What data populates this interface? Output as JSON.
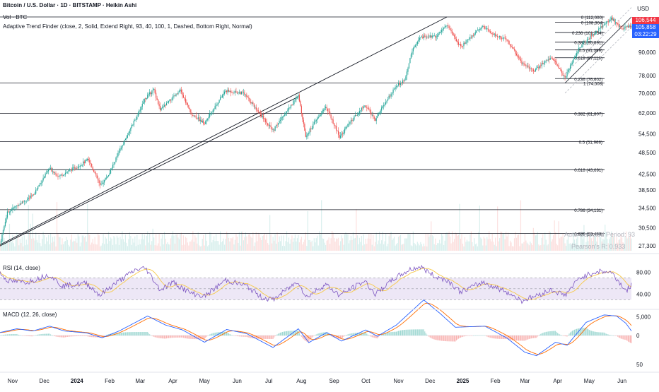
{
  "header": {
    "title": "Bitcoin / U.S. Dollar · 1D · BITSTAMP · Heikin Ashi",
    "volume_label": "Vol · BTC",
    "indicator_label": "Adaptive Trend Finder (close, 2, Solid, Extend Right, 93, 40, 100, 1, Dashed, Bottom Right, Normal)",
    "currency": "USD"
  },
  "price_tags": {
    "current_price": "105,858",
    "countdown": "03:22:29",
    "upper_tag": "106,544"
  },
  "fib_levels": [
    {
      "label": "0 (112,000)",
      "value": 112000
    },
    {
      "label": "0 (108,364)",
      "value": 108364
    },
    {
      "label": "0.236 (101,754)",
      "value": 101754
    },
    {
      "label": "0.382 (95,891)",
      "value": 95891
    },
    {
      "label": "0.5 (91,399)",
      "value": 91399
    },
    {
      "label": "0.618 (87,119)",
      "value": 87119
    },
    {
      "label": "0.236 (76,602)",
      "value": 76602
    },
    {
      "label": "1 (74,508)",
      "value": 74508
    },
    {
      "label": "0.382 (61,807)",
      "value": 61807
    },
    {
      "label": "0.5 (51,966)",
      "value": 51966
    },
    {
      "label": "0.618 (43,691)",
      "value": 43691
    },
    {
      "label": "0.786 (34,131)",
      "value": 34131
    },
    {
      "label": "0.886 (29,466)",
      "value": 29466
    }
  ],
  "annotations": {
    "auto_selected": "Auto-Selected Period: 93",
    "pearson": "Pearson's R: 0.933"
  },
  "rsi": {
    "label": "RSI (14, close)",
    "ticks": [
      "80.00",
      "40.00"
    ]
  },
  "macd": {
    "label": "MACD (12, 26, close)",
    "ticks": [
      "5,000",
      "0",
      "50"
    ]
  },
  "colors": {
    "up": "#26a69a",
    "down": "#ef5350",
    "rsi_line": "#7e57c2",
    "rsi_ma": "#f7c948",
    "macd_line": "#2962ff",
    "signal_line": "#ff6d00",
    "price_tag_red": "#f23645",
    "price_tag_blue": "#2962ff",
    "rsi_band": "#ede7f6"
  },
  "chart_data": {
    "type": "candlestick",
    "title": "Bitcoin / U.S. Dollar · 1D · BITSTAMP · Heikin Ashi",
    "y_scale": "log",
    "y_ticks": [
      "90,000",
      "78,000",
      "70,000",
      "62,000",
      "54,500",
      "48,500",
      "42,500",
      "38,500",
      "34,500",
      "30,500",
      "27,300"
    ],
    "x_ticks": [
      "Nov",
      "Dec",
      "2024",
      "Feb",
      "Mar",
      "Apr",
      "May",
      "Jun",
      "Jul",
      "Aug",
      "Sep",
      "Oct",
      "Nov",
      "Dec",
      "2025",
      "Feb",
      "Mar",
      "Apr",
      "May",
      "Jun"
    ],
    "x_range": [
      "2023-10-20",
      "2025-06-10"
    ],
    "y_range": [
      26500,
      117000
    ],
    "close_path": [
      [
        "2023-10-20",
        27500
      ],
      [
        "2023-10-27",
        33500
      ],
      [
        "2023-11-05",
        35000
      ],
      [
        "2023-11-20",
        37200
      ],
      [
        "2023-12-06",
        44000
      ],
      [
        "2023-12-15",
        42000
      ],
      [
        "2024-01-01",
        44500
      ],
      [
        "2024-01-12",
        46500
      ],
      [
        "2024-01-23",
        39500
      ],
      [
        "2024-02-01",
        42800
      ],
      [
        "2024-02-15",
        52000
      ],
      [
        "2024-02-28",
        61500
      ],
      [
        "2024-03-05",
        67500
      ],
      [
        "2024-03-14",
        71500
      ],
      [
        "2024-03-20",
        63000
      ],
      [
        "2024-04-08",
        71000
      ],
      [
        "2024-04-18",
        62000
      ],
      [
        "2024-05-01",
        58000
      ],
      [
        "2024-05-21",
        71000
      ],
      [
        "2024-06-07",
        70000
      ],
      [
        "2024-06-24",
        61000
      ],
      [
        "2024-07-05",
        55500
      ],
      [
        "2024-07-14",
        60500
      ],
      [
        "2024-07-29",
        68800
      ],
      [
        "2024-08-05",
        53500
      ],
      [
        "2024-08-24",
        64500
      ],
      [
        "2024-09-06",
        53500
      ],
      [
        "2024-09-30",
        65000
      ],
      [
        "2024-10-10",
        59500
      ],
      [
        "2024-10-29",
        72500
      ],
      [
        "2024-11-08",
        77000
      ],
      [
        "2024-11-13",
        89500
      ],
      [
        "2024-11-22",
        99000
      ],
      [
        "2024-12-06",
        99500
      ],
      [
        "2024-12-17",
        106500
      ],
      [
        "2024-12-30",
        93000
      ],
      [
        "2025-01-20",
        106000
      ],
      [
        "2025-01-28",
        101500
      ],
      [
        "2025-02-12",
        97000
      ],
      [
        "2025-02-26",
        84500
      ],
      [
        "2025-03-10",
        80500
      ],
      [
        "2025-03-26",
        87500
      ],
      [
        "2025-04-08",
        77000
      ],
      [
        "2025-04-22",
        93000
      ],
      [
        "2025-05-09",
        103500
      ],
      [
        "2025-05-22",
        111000
      ],
      [
        "2025-06-01",
        104000
      ],
      [
        "2025-06-10",
        106500
      ]
    ],
    "rsi_path": [
      [
        "2023-10-20",
        78
      ],
      [
        "2023-10-28",
        64
      ],
      [
        "2023-11-15",
        62
      ],
      [
        "2023-12-06",
        76
      ],
      [
        "2023-12-18",
        55
      ],
      [
        "2024-01-10",
        60
      ],
      [
        "2024-01-23",
        38
      ],
      [
        "2024-02-05",
        58
      ],
      [
        "2024-02-25",
        84
      ],
      [
        "2024-03-06",
        88
      ],
      [
        "2024-03-20",
        48
      ],
      [
        "2024-04-01",
        62
      ],
      [
        "2024-04-18",
        42
      ],
      [
        "2024-05-01",
        36
      ],
      [
        "2024-05-21",
        66
      ],
      [
        "2024-06-10",
        55
      ],
      [
        "2024-06-24",
        34
      ],
      [
        "2024-07-05",
        30
      ],
      [
        "2024-07-29",
        64
      ],
      [
        "2024-08-05",
        34
      ],
      [
        "2024-08-24",
        58
      ],
      [
        "2024-09-06",
        38
      ],
      [
        "2024-09-30",
        64
      ],
      [
        "2024-10-10",
        40
      ],
      [
        "2024-10-29",
        70
      ],
      [
        "2024-11-13",
        86
      ],
      [
        "2024-11-22",
        90
      ],
      [
        "2024-12-06",
        72
      ],
      [
        "2024-12-17",
        66
      ],
      [
        "2024-12-30",
        44
      ],
      [
        "2025-01-20",
        62
      ],
      [
        "2025-02-12",
        44
      ],
      [
        "2025-02-26",
        28
      ],
      [
        "2025-03-10",
        36
      ],
      [
        "2025-03-26",
        48
      ],
      [
        "2025-04-08",
        38
      ],
      [
        "2025-04-22",
        70
      ],
      [
        "2025-05-09",
        82
      ],
      [
        "2025-05-22",
        80
      ],
      [
        "2025-06-05",
        46
      ],
      [
        "2025-06-10",
        56
      ]
    ],
    "macd_path": [
      [
        "2023-10-20",
        800
      ],
      [
        "2023-11-05",
        1800
      ],
      [
        "2023-11-20",
        1200
      ],
      [
        "2023-12-06",
        2500
      ],
      [
        "2023-12-20",
        1200
      ],
      [
        "2024-01-10",
        700
      ],
      [
        "2024-01-25",
        -600
      ],
      [
        "2024-02-10",
        1200
      ],
      [
        "2024-03-08",
        5200
      ],
      [
        "2024-03-25",
        2800
      ],
      [
        "2024-04-10",
        1500
      ],
      [
        "2024-05-01",
        -1800
      ],
      [
        "2024-05-22",
        1600
      ],
      [
        "2024-06-10",
        500
      ],
      [
        "2024-07-05",
        -3200
      ],
      [
        "2024-07-29",
        1800
      ],
      [
        "2024-08-08",
        -1900
      ],
      [
        "2024-08-25",
        800
      ],
      [
        "2024-09-08",
        -1500
      ],
      [
        "2024-10-01",
        1500
      ],
      [
        "2024-10-12",
        -200
      ],
      [
        "2024-10-30",
        2800
      ],
      [
        "2024-11-25",
        9500
      ],
      [
        "2024-12-10",
        6000
      ],
      [
        "2024-12-25",
        2200
      ],
      [
        "2025-01-22",
        2500
      ],
      [
        "2025-02-12",
        -700
      ],
      [
        "2025-03-01",
        -4500
      ],
      [
        "2025-03-12",
        -5400
      ],
      [
        "2025-03-30",
        -1800
      ],
      [
        "2025-04-10",
        -2600
      ],
      [
        "2025-04-28",
        3500
      ],
      [
        "2025-05-15",
        5500
      ],
      [
        "2025-05-27",
        5200
      ],
      [
        "2025-06-05",
        3200
      ],
      [
        "2025-06-10",
        1200
      ]
    ]
  }
}
